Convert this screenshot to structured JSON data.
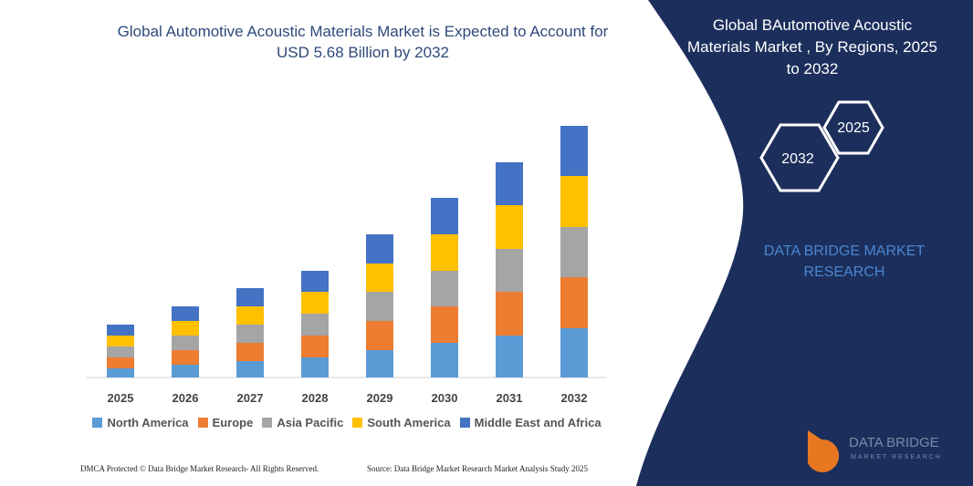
{
  "chart_data": {
    "type": "bar",
    "stacked": true,
    "title": "Global Automotive Acoustic Materials Market is Expected to Account for USD 5.68 Billion by 2032",
    "categories": [
      "2025",
      "2026",
      "2027",
      "2028",
      "2029",
      "2030",
      "2031",
      "2032"
    ],
    "series": [
      {
        "name": "North America",
        "color": "#5b9bd5",
        "values": [
          10,
          14,
          18,
          22,
          30,
          38,
          46,
          54
        ]
      },
      {
        "name": "Europe",
        "color": "#ed7d31",
        "values": [
          12,
          16,
          20,
          24,
          32,
          40,
          48,
          56
        ]
      },
      {
        "name": "Asia Pacific",
        "color": "#a5a5a5",
        "values": [
          12,
          16,
          20,
          24,
          32,
          39,
          47,
          55
        ]
      },
      {
        "name": "South America",
        "color": "#ffc000",
        "values": [
          12,
          16,
          20,
          24,
          31,
          40,
          48,
          56
        ]
      },
      {
        "name": "Middle East and Africa",
        "color": "#4472c4",
        "values": [
          12,
          16,
          20,
          23,
          32,
          40,
          47,
          55
        ]
      }
    ],
    "ylim": [
      0,
      290
    ]
  },
  "panel": {
    "title": "Global BAutomotive Acoustic Materials Market , By Regions, 2025 to 2032",
    "hex_start": "2025",
    "hex_end": "2032",
    "brand": "DATA BRIDGE MARKET RESEARCH"
  },
  "logo": {
    "name": "DATA BRIDGE",
    "tagline": "MARKET RESEARCH"
  },
  "footer": {
    "left": "DMCA Protected © Data Bridge Market Research- All Rights Reserved.",
    "right": "Source: Data Bridge Market Research Market Analysis Study 2025"
  }
}
